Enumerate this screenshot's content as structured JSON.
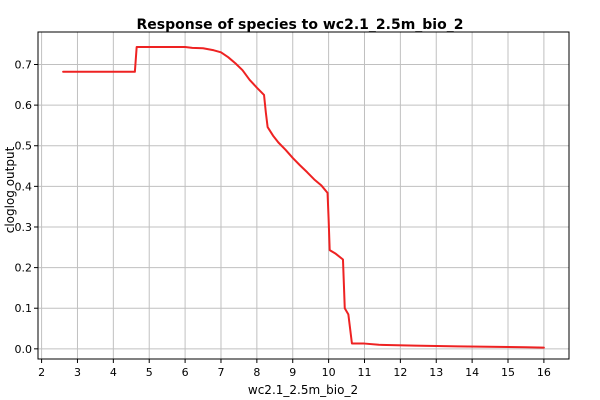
{
  "chart_data": {
    "type": "line",
    "title": "Response of species to wc2.1_2.5m_bio_2",
    "xlabel": "wc2.1_2.5m_bio_2",
    "ylabel": "cloglog output",
    "xlim": [
      1.9,
      16.7
    ],
    "ylim": [
      -0.025,
      0.78
    ],
    "xticks": [
      "2",
      "3",
      "4",
      "5",
      "6",
      "7",
      "8",
      "9",
      "10",
      "11",
      "12",
      "13",
      "14",
      "15",
      "16"
    ],
    "yticks": [
      "0.0",
      "0.1",
      "0.2",
      "0.3",
      "0.4",
      "0.5",
      "0.6",
      "0.7"
    ],
    "grid": true,
    "legend": "none",
    "line_color": "#ee2222",
    "grid_color": "#c0c0c0",
    "series": [
      {
        "x": [
          2.6,
          4.6,
          4.65,
          6.0,
          6.2,
          6.5,
          6.8,
          7.0,
          7.2,
          7.4,
          7.6,
          7.8,
          8.0,
          8.2,
          8.25,
          8.3,
          8.45,
          8.6,
          8.8,
          9.0,
          9.2,
          9.4,
          9.6,
          9.8,
          9.97,
          10.0,
          10.03,
          10.2,
          10.4,
          10.45,
          10.55,
          10.65,
          11.0,
          11.4,
          12.4,
          13.6,
          15.5,
          16.0
        ],
        "y": [
          0.682,
          0.682,
          0.743,
          0.743,
          0.741,
          0.74,
          0.735,
          0.73,
          0.718,
          0.703,
          0.686,
          0.662,
          0.643,
          0.625,
          0.582,
          0.546,
          0.525,
          0.508,
          0.49,
          0.47,
          0.452,
          0.435,
          0.417,
          0.402,
          0.384,
          0.32,
          0.243,
          0.234,
          0.22,
          0.1,
          0.085,
          0.013,
          0.013,
          0.01,
          0.008,
          0.006,
          0.004,
          0.003
        ]
      }
    ]
  }
}
